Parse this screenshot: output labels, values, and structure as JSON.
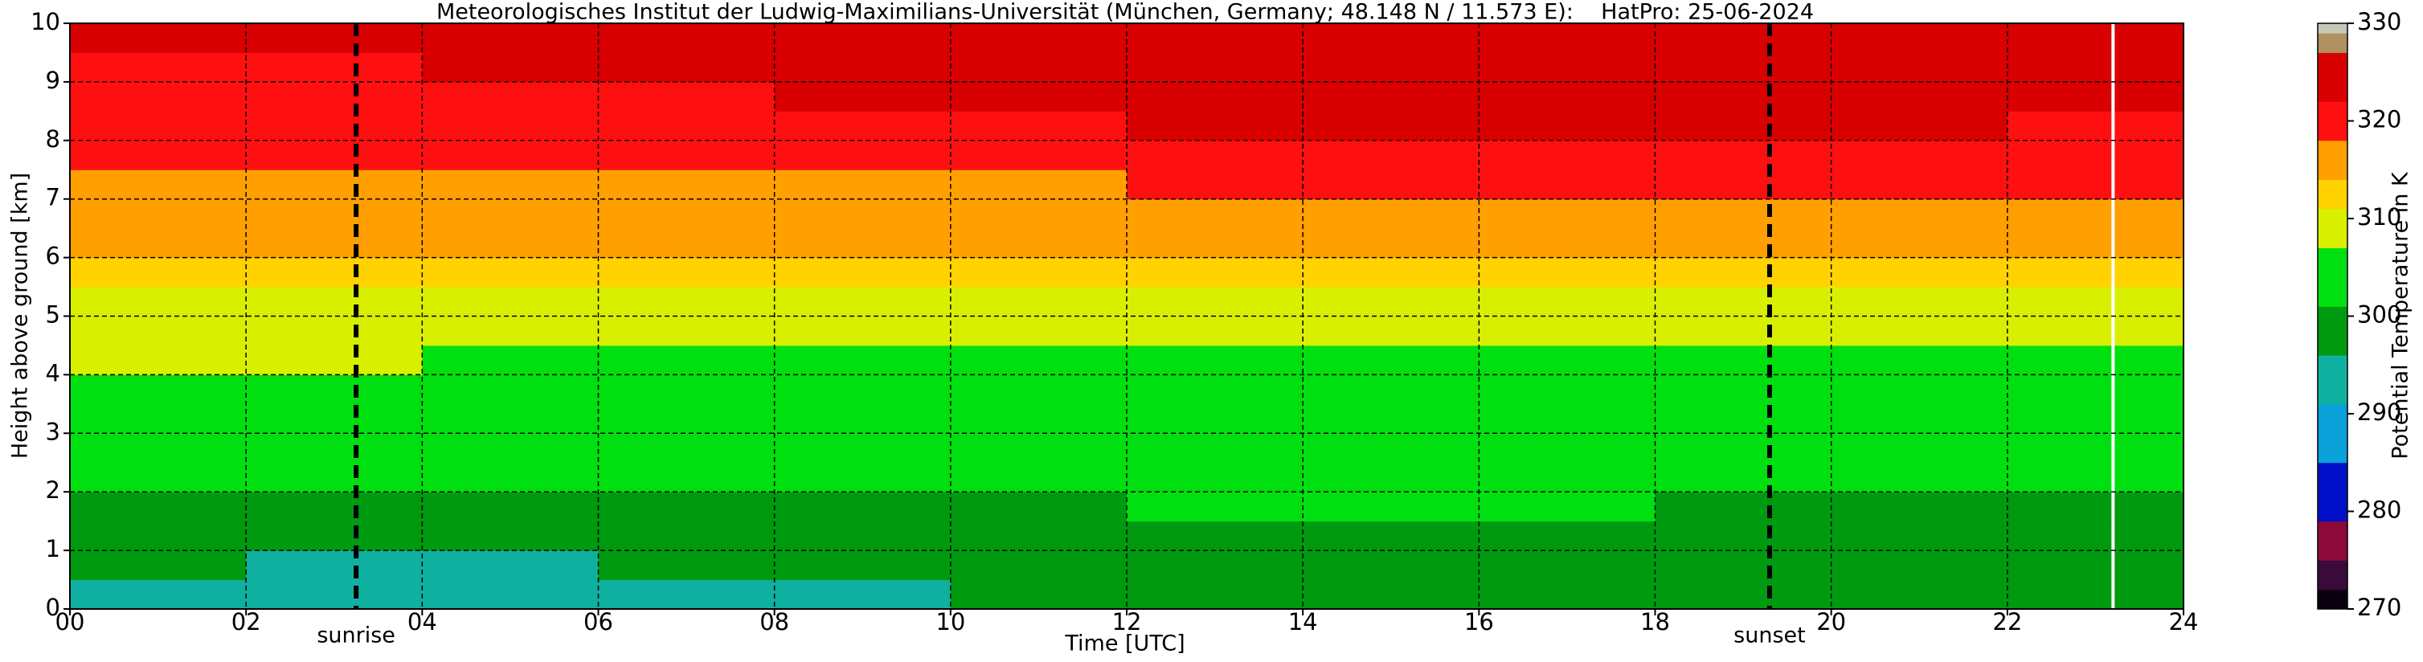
{
  "chart_data": {
    "type": "heatmap",
    "title": "Meteorologisches Institut der Ludwig-Maximilians-Universität (München, Germany; 48.148 N / 11.573 E):    HatPro: 25-06-2024",
    "x_label": "Time [UTC]",
    "y_label": "Height above ground [km]",
    "colorbar_label": "Potential Temperature in K",
    "xlim": [
      0,
      24
    ],
    "ylim": [
      0,
      10
    ],
    "xticks": [
      {
        "value": 0,
        "label": "00"
      },
      {
        "value": 2,
        "label": "02"
      },
      {
        "value": 4,
        "label": "04"
      },
      {
        "value": 6,
        "label": "06"
      },
      {
        "value": 8,
        "label": "08"
      },
      10,
      12,
      14,
      16,
      18,
      20,
      22,
      24
    ],
    "yticks": [
      0,
      1,
      2,
      3,
      4,
      5,
      6,
      7,
      8,
      9,
      10
    ],
    "clim": [
      270,
      330
    ],
    "cticks": [
      270,
      280,
      290,
      300,
      310,
      320,
      330
    ],
    "grid": true,
    "xbins": [
      0,
      2,
      4,
      6,
      8,
      10,
      12,
      14,
      16,
      18,
      20,
      22,
      24
    ],
    "ybins": [
      0,
      0.5,
      1,
      1.5,
      2,
      2.5,
      3,
      3.5,
      4,
      4.5,
      5,
      5.5,
      6,
      6.5,
      7,
      7.5,
      8,
      8.5,
      9,
      9.5,
      10
    ],
    "values": [
      [
        294,
        292,
        292,
        293,
        294,
        297,
        299,
        299,
        299,
        299,
        299,
        297
      ],
      [
        296,
        295,
        295,
        296,
        296,
        298,
        300,
        300,
        300,
        300,
        300,
        298
      ],
      [
        299,
        299,
        299,
        299,
        299,
        300,
        300,
        300,
        300,
        300,
        300,
        300
      ],
      [
        300,
        300,
        300,
        300,
        300,
        300,
        301,
        301,
        301,
        300,
        300,
        300
      ],
      [
        301,
        301,
        301,
        301,
        301,
        301,
        301,
        301,
        301,
        301,
        301,
        301
      ],
      [
        302,
        302,
        302,
        302,
        302,
        302,
        302,
        302,
        302,
        302,
        302,
        302
      ],
      [
        303,
        303,
        303,
        303,
        303,
        303,
        303,
        303,
        303,
        303,
        303,
        303
      ],
      [
        304,
        304,
        304,
        304,
        304,
        304,
        304,
        304,
        304,
        304,
        304,
        304
      ],
      [
        307,
        307,
        306,
        306,
        305,
        305,
        305,
        305,
        305,
        305,
        305,
        305
      ],
      [
        309,
        309,
        309,
        309,
        309,
        309,
        309,
        309,
        309,
        309,
        309,
        309
      ],
      [
        310,
        310,
        310,
        310,
        310,
        310,
        310,
        310,
        310,
        310,
        310,
        310
      ],
      [
        312,
        312,
        312,
        312,
        312,
        312,
        312,
        312,
        312,
        312,
        312,
        312
      ],
      [
        314,
        314,
        314,
        314,
        314,
        314,
        314,
        314,
        314,
        314,
        314,
        314
      ],
      [
        315,
        315,
        315,
        315,
        315,
        315,
        316,
        316,
        316,
        316,
        316,
        315
      ],
      [
        316,
        316,
        316,
        316,
        317,
        317,
        318,
        318,
        319,
        319,
        319,
        318
      ],
      [
        318,
        318,
        318,
        318,
        319,
        320,
        320,
        321,
        321,
        321,
        321,
        320
      ],
      [
        319,
        319,
        320,
        320,
        321,
        321,
        322,
        322,
        322,
        322,
        322,
        321
      ],
      [
        320,
        320,
        321,
        321,
        322,
        322,
        323,
        323,
        323,
        323,
        323,
        322
      ],
      [
        321,
        321,
        322,
        322,
        323,
        323,
        324,
        324,
        324,
        324,
        324,
        323
      ],
      [
        322,
        322,
        323,
        323,
        324,
        324,
        325,
        325,
        325,
        325,
        325,
        324
      ]
    ],
    "colormap": {
      "bounds": [
        270,
        272,
        275,
        279,
        285,
        291,
        296,
        301,
        307,
        311,
        314,
        318,
        322,
        327,
        329,
        330
      ],
      "colors": [
        "#0a0010",
        "#3a0a3a",
        "#8b0a3a",
        "#0010c8",
        "#0aa0d8",
        "#10b0a0",
        "#009a10",
        "#00e010",
        "#d8f000",
        "#ffd200",
        "#ffa000",
        "#ff1010",
        "#d80000",
        "#b09060",
        "#c8c8b8"
      ]
    },
    "annotations": [
      {
        "text": "sunrise",
        "x": 3.25
      },
      {
        "text": "sunset",
        "x": 19.3
      }
    ],
    "gaps": [
      23.2
    ],
    "gap_color": "#ffffff"
  }
}
